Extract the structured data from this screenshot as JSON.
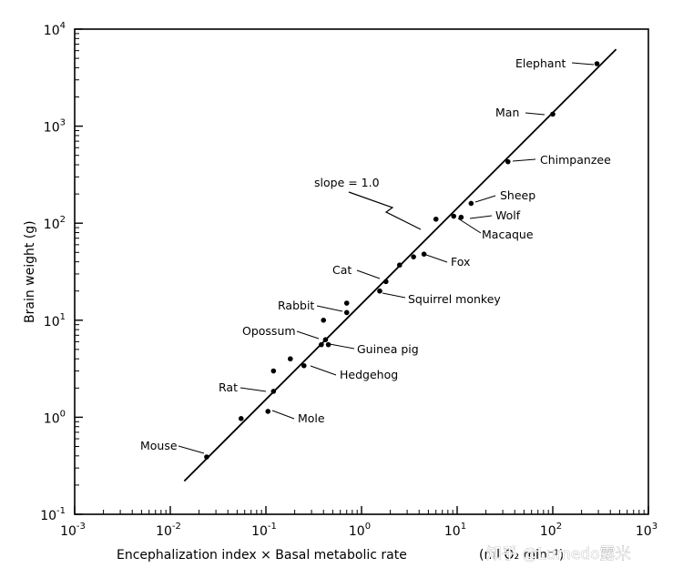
{
  "chart_data": {
    "type": "scatter",
    "log_x": true,
    "log_y": true,
    "xlim": [
      0.001,
      1000
    ],
    "ylim": [
      0.1,
      10000
    ],
    "xticks": [
      {
        "value": 0.001,
        "base": "10",
        "exp": "-3"
      },
      {
        "value": 0.01,
        "base": "10",
        "exp": "-2"
      },
      {
        "value": 0.1,
        "base": "10",
        "exp": "-1"
      },
      {
        "value": 1,
        "base": "10",
        "exp": "0"
      },
      {
        "value": 10,
        "base": "10",
        "exp": "1"
      },
      {
        "value": 100,
        "base": "10",
        "exp": "2"
      },
      {
        "value": 1000,
        "base": "10",
        "exp": "3"
      }
    ],
    "yticks": [
      {
        "value": 0.1,
        "base": "10",
        "exp": "-1"
      },
      {
        "value": 1,
        "base": "10",
        "exp": "0"
      },
      {
        "value": 10,
        "base": "10",
        "exp": "1"
      },
      {
        "value": 100,
        "base": "10",
        "exp": "2"
      },
      {
        "value": 1000,
        "base": "10",
        "exp": "3"
      },
      {
        "value": 10000,
        "base": "10",
        "exp": "4"
      }
    ],
    "xlabel": "Encephalization index  ×  Basal metabolic rate",
    "xlabel_units": "(ml O₂ min⁻¹)",
    "ylabel": "Brain weight   (g)",
    "regression_line": {
      "label": "slope = 1.0",
      "x": [
        0.014,
        460
      ],
      "y": [
        0.22,
        6200
      ]
    },
    "labeled_points": [
      {
        "label": "Elephant",
        "x": 290,
        "y": 4400
      },
      {
        "label": "Man",
        "x": 100,
        "y": 1330
      },
      {
        "label": "Chimpanzee",
        "x": 34,
        "y": 430
      },
      {
        "label": "Sheep",
        "x": 14,
        "y": 160
      },
      {
        "label": "Wolf",
        "x": 9.2,
        "y": 118
      },
      {
        "label": "Macaque",
        "x": 11,
        "y": 115
      },
      {
        "label": "Fox",
        "x": 4.5,
        "y": 48
      },
      {
        "label": "Cat",
        "x": 1.8,
        "y": 25
      },
      {
        "label": "Squirrel monkey",
        "x": 1.55,
        "y": 20
      },
      {
        "label": "Rabbit",
        "x": 0.7,
        "y": 12
      },
      {
        "label": "Opossum",
        "x": 0.38,
        "y": 5.6
      },
      {
        "label": "Guinea pig",
        "x": 0.45,
        "y": 5.6
      },
      {
        "label": "Hedgehog",
        "x": 0.25,
        "y": 3.4
      },
      {
        "label": "Rat",
        "x": 0.12,
        "y": 1.85
      },
      {
        "label": "Mole",
        "x": 0.105,
        "y": 1.15
      },
      {
        "label": "Mouse",
        "x": 0.024,
        "y": 0.39
      }
    ],
    "other_points": [
      {
        "x": 6,
        "y": 110
      },
      {
        "x": 3.5,
        "y": 45
      },
      {
        "x": 2.5,
        "y": 37
      },
      {
        "x": 0.7,
        "y": 15
      },
      {
        "x": 0.4,
        "y": 10
      },
      {
        "x": 0.42,
        "y": 6.3
      },
      {
        "x": 0.18,
        "y": 4.0
      },
      {
        "x": 0.12,
        "y": 3.0
      },
      {
        "x": 0.055,
        "y": 0.97
      }
    ]
  },
  "watermark": {
    "text": "知乎 @Lumedo露米"
  }
}
